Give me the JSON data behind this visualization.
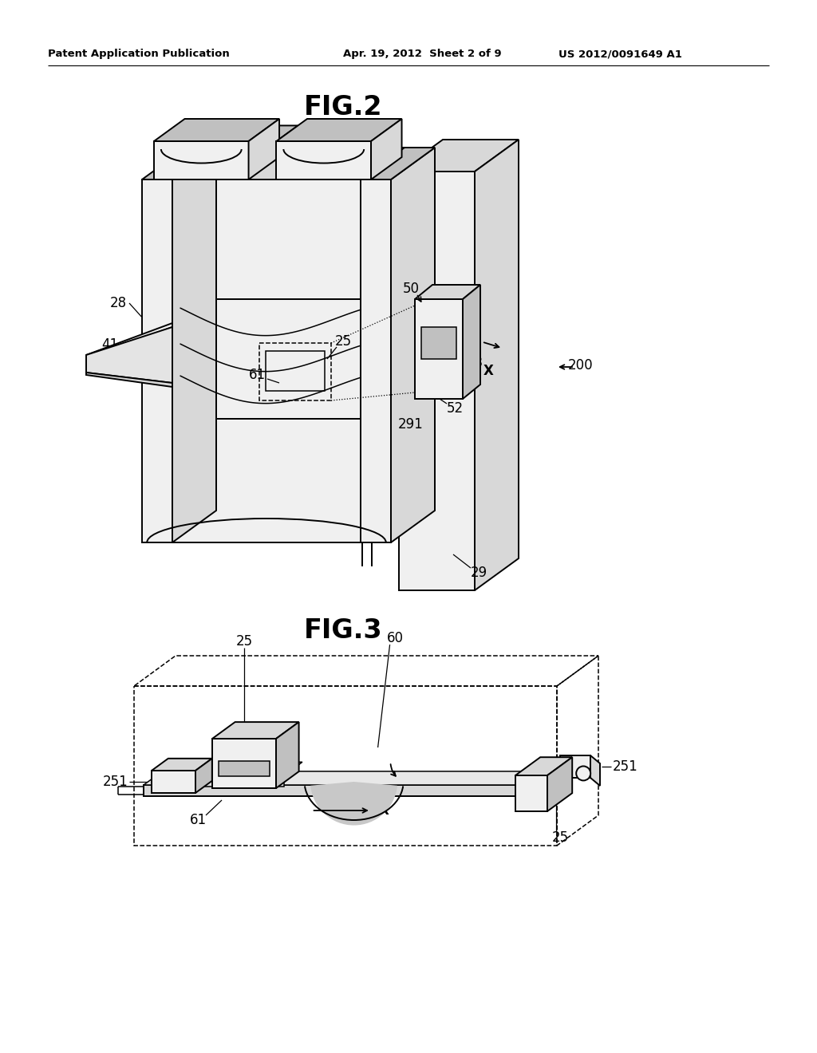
{
  "bg_color": "#ffffff",
  "line_color": "#000000",
  "header_left": "Patent Application Publication",
  "header_mid": "Apr. 19, 2012  Sheet 2 of 9",
  "header_right": "US 2012/0091649 A1",
  "fig2_title": "FIG.2",
  "fig3_title": "FIG.3"
}
